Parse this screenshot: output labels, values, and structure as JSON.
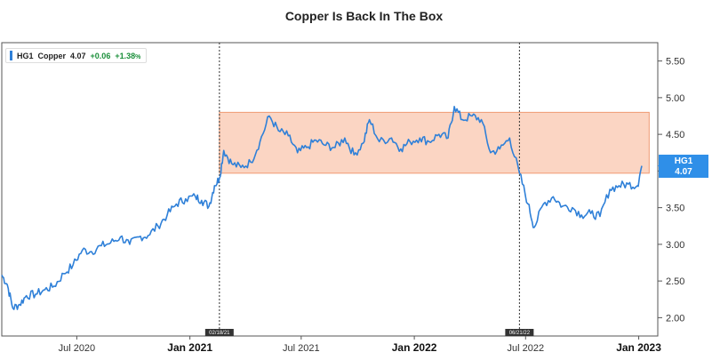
{
  "title": "Copper Is Back In The Box",
  "legend": {
    "symbol": "HG1",
    "name": "Copper",
    "value": "4.07",
    "change": "+0.06",
    "change_pct": "+1.38",
    "pct_sign": "%"
  },
  "last_label": {
    "symbol": "HG1",
    "value": "4.07"
  },
  "colors": {
    "line": "#2f80d8",
    "box_fill": "#fbd5c3",
    "box_stroke": "#f09a72",
    "tag": "#2f8fe8"
  },
  "chart_data": {
    "type": "line",
    "title": "Copper Is Back In The Box",
    "series": [
      {
        "name": "Copper",
        "points": [
          [
            "2020-03-01",
            2.58
          ],
          [
            "2020-03-10",
            2.45
          ],
          [
            "2020-03-19",
            2.13
          ],
          [
            "2020-03-30",
            2.18
          ],
          [
            "2020-04-10",
            2.3
          ],
          [
            "2020-04-25",
            2.32
          ],
          [
            "2020-05-10",
            2.38
          ],
          [
            "2020-05-25",
            2.43
          ],
          [
            "2020-06-10",
            2.6
          ],
          [
            "2020-06-25",
            2.72
          ],
          [
            "2020-07-10",
            2.92
          ],
          [
            "2020-07-25",
            2.9
          ],
          [
            "2020-08-10",
            2.98
          ],
          [
            "2020-08-25",
            3.02
          ],
          [
            "2020-09-10",
            3.1
          ],
          [
            "2020-09-25",
            3.0
          ],
          [
            "2020-10-10",
            3.1
          ],
          [
            "2020-10-25",
            3.12
          ],
          [
            "2020-11-10",
            3.25
          ],
          [
            "2020-11-25",
            3.4
          ],
          [
            "2020-12-10",
            3.55
          ],
          [
            "2020-12-25",
            3.62
          ],
          [
            "2021-01-10",
            3.65
          ],
          [
            "2021-01-20",
            3.6
          ],
          [
            "2021-02-01",
            3.52
          ],
          [
            "2021-02-10",
            3.8
          ],
          [
            "2021-02-18",
            3.9
          ],
          [
            "2021-02-25",
            4.28
          ],
          [
            "2021-03-10",
            4.1
          ],
          [
            "2021-03-25",
            4.05
          ],
          [
            "2021-04-10",
            4.12
          ],
          [
            "2021-04-25",
            4.4
          ],
          [
            "2021-05-10",
            4.75
          ],
          [
            "2021-05-25",
            4.55
          ],
          [
            "2021-06-10",
            4.48
          ],
          [
            "2021-06-25",
            4.25
          ],
          [
            "2021-07-10",
            4.32
          ],
          [
            "2021-07-25",
            4.42
          ],
          [
            "2021-08-10",
            4.35
          ],
          [
            "2021-08-25",
            4.32
          ],
          [
            "2021-09-10",
            4.45
          ],
          [
            "2021-09-25",
            4.22
          ],
          [
            "2021-10-10",
            4.38
          ],
          [
            "2021-10-20",
            4.7
          ],
          [
            "2021-11-05",
            4.4
          ],
          [
            "2021-11-25",
            4.45
          ],
          [
            "2021-12-10",
            4.3
          ],
          [
            "2021-12-25",
            4.4
          ],
          [
            "2022-01-10",
            4.45
          ],
          [
            "2022-01-25",
            4.4
          ],
          [
            "2022-02-10",
            4.5
          ],
          [
            "2022-02-25",
            4.45
          ],
          [
            "2022-03-07",
            4.88
          ],
          [
            "2022-03-20",
            4.7
          ],
          [
            "2022-04-05",
            4.75
          ],
          [
            "2022-04-20",
            4.7
          ],
          [
            "2022-05-05",
            4.25
          ],
          [
            "2022-05-20",
            4.3
          ],
          [
            "2022-06-05",
            4.45
          ],
          [
            "2022-06-21",
            3.97
          ],
          [
            "2022-07-05",
            3.55
          ],
          [
            "2022-07-15",
            3.23
          ],
          [
            "2022-07-30",
            3.55
          ],
          [
            "2022-08-15",
            3.65
          ],
          [
            "2022-08-30",
            3.52
          ],
          [
            "2022-09-15",
            3.5
          ],
          [
            "2022-09-30",
            3.4
          ],
          [
            "2022-10-15",
            3.42
          ],
          [
            "2022-10-30",
            3.38
          ],
          [
            "2022-11-15",
            3.75
          ],
          [
            "2022-11-30",
            3.8
          ],
          [
            "2022-12-15",
            3.82
          ],
          [
            "2022-12-30",
            3.8
          ],
          [
            "2023-01-06",
            4.07
          ]
        ]
      }
    ],
    "box": {
      "x_start": "2021-02-18",
      "x_end": "2023-01-18",
      "y_low": 3.97,
      "y_high": 4.8
    },
    "vlines": [
      {
        "x": "2021-02-18",
        "label": "02/18/21"
      },
      {
        "x": "2022-06-21",
        "label": "06/21/22"
      }
    ],
    "ylim": [
      1.75,
      5.75
    ],
    "yticks": [
      "2.00",
      "2.50",
      "3.00",
      "3.50",
      "4.00",
      "4.50",
      "5.00",
      "5.50"
    ],
    "xticks": [
      {
        "date": "2020-07-01",
        "label": "Jul 2020",
        "major": false
      },
      {
        "date": "2021-01-01",
        "label": "Jan 2021",
        "major": true
      },
      {
        "date": "2021-07-01",
        "label": "Jul 2021",
        "major": false
      },
      {
        "date": "2022-01-01",
        "label": "Jan 2022",
        "major": true
      },
      {
        "date": "2022-07-01",
        "label": "Jul 2022",
        "major": false
      },
      {
        "date": "2023-01-01",
        "label": "Jan 2023",
        "major": true
      }
    ],
    "xlim": [
      "2020-03-01",
      "2023-02-01"
    ],
    "grid": false,
    "legend_position": "top-left"
  }
}
